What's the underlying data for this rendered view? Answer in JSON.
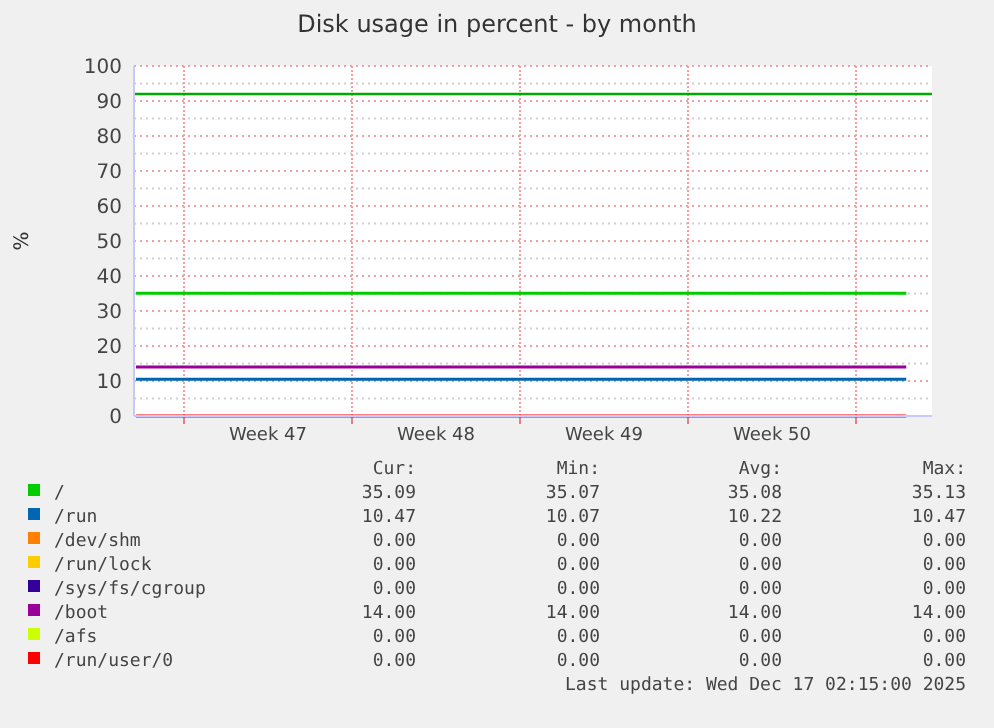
{
  "chart_data": {
    "type": "line",
    "title": "Disk usage in percent - by month",
    "ylabel": "%",
    "x": [
      "2025-11-15T00:00",
      "2025-12-17T02:15"
    ],
    "xlim": [
      "2025-11-14T22:00",
      "2025-12-18T04:00"
    ],
    "xticks": [
      {
        "value": "2025-11-17T00:00",
        "label": null
      },
      {
        "value": "2025-11-20T12:00",
        "label": "Week 47"
      },
      {
        "value": "2025-11-24T00:00",
        "label": null
      },
      {
        "value": "2025-11-27T12:00",
        "label": "Week 48"
      },
      {
        "value": "2025-12-01T00:00",
        "label": null
      },
      {
        "value": "2025-12-04T12:00",
        "label": "Week 49"
      },
      {
        "value": "2025-12-08T00:00",
        "label": null
      },
      {
        "value": "2025-12-11T12:00",
        "label": "Week 50"
      },
      {
        "value": "2025-12-15T00:00",
        "label": null
      }
    ],
    "ylim": [
      0,
      100
    ],
    "yticks": [
      0,
      {
        "value": 5,
        "label": null
      },
      10,
      {
        "value": 15,
        "label": null
      },
      20,
      {
        "value": 25,
        "label": null
      },
      30,
      {
        "value": 35,
        "label": null
      },
      40,
      {
        "value": 45,
        "label": null
      },
      50,
      {
        "value": 55,
        "label": null
      },
      60,
      {
        "value": 65,
        "label": null
      },
      70,
      {
        "value": 75,
        "label": null
      },
      80,
      {
        "value": 85,
        "label": null
      },
      90,
      {
        "value": 95,
        "label": null
      },
      100
    ],
    "grid": true,
    "legend": "bottom",
    "marker": "none",
    "line_style": "solid",
    "series": [
      {
        "name": "/",
        "color": "#00cc00",
        "values": [
          35.1,
          35.1
        ]
      },
      {
        "name": "/run",
        "color": "#0066b3",
        "values": [
          10.5,
          10.5
        ]
      },
      {
        "name": "/dev/shm",
        "color": "#ff8000",
        "values": [
          null,
          null
        ]
      },
      {
        "name": "/run/lock",
        "color": "#ffcc00",
        "values": [
          null,
          null
        ]
      },
      {
        "name": "/sys/fs/cgroup",
        "color": "#330099",
        "values": [
          null,
          null
        ]
      },
      {
        "name": "/boot",
        "color": "#990099",
        "values": [
          14,
          14
        ]
      },
      {
        "name": "/afs",
        "color": "#ccff00",
        "values": [
          null,
          null
        ]
      },
      {
        "name": "/run/user/0",
        "color": "#ff0000",
        "values": [
          0,
          0
        ]
      }
    ],
    "ref_lines": [
      {
        "axis": "y",
        "value": 92,
        "color": "#00aa00"
      }
    ],
    "annotations": [
      "Cur:",
      "Min:",
      "Avg:",
      "Max:",
      "35.09",
      "35.07",
      "35.08",
      "35.13",
      "10.47",
      "10.07",
      "10.22",
      "10.47",
      "0.00",
      "0.00",
      "0.00",
      "0.00",
      "0.00",
      "0.00",
      "0.00",
      "0.00",
      "0.00",
      "0.00",
      "0.00",
      "0.00",
      "14.00",
      "14.00",
      "14.00",
      "14.00",
      "0.00",
      "0.00",
      "0.00",
      "0.00",
      "0.00",
      "0.00",
      "0.00",
      "0.00",
      "Last update: Wed Dec 17 02:15:00 2025"
    ]
  }
}
